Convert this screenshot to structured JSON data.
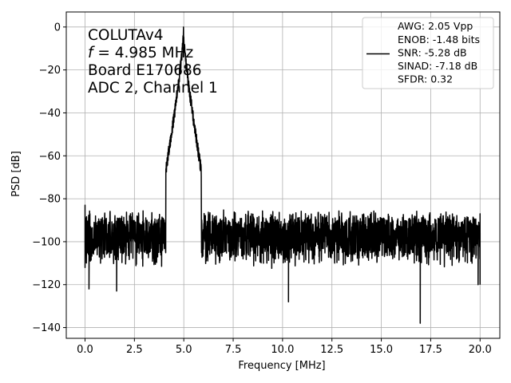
{
  "chart_data": {
    "type": "line",
    "xlabel": "Frequency [MHz]",
    "ylabel": "PSD [dB]",
    "xlim": [
      -0.95,
      21.0
    ],
    "ylim": [
      -145,
      7
    ],
    "xticks": [
      0.0,
      2.5,
      5.0,
      7.5,
      10.0,
      12.5,
      15.0,
      17.5,
      20.0
    ],
    "xtick_labels": [
      "0.0",
      "2.5",
      "5.0",
      "7.5",
      "10.0",
      "12.5",
      "15.0",
      "17.5",
      "20.0"
    ],
    "yticks": [
      0,
      -20,
      -40,
      -60,
      -80,
      -100,
      -120,
      -140
    ],
    "ytick_labels": [
      "0",
      "−20",
      "−40",
      "−60",
      "−80",
      "−100",
      "−120",
      "−140"
    ],
    "grid": true,
    "legend_position": "upper-right",
    "annotation": {
      "line1": "COLUTAv4",
      "line2_var": "f",
      "line2_rest": " = 4.985 MHz",
      "line3": "Board E170686",
      "line4": "ADC 2, Channel 1"
    },
    "legend": {
      "color": "#000000",
      "lines": [
        "AWG: 2.05 Vpp",
        "ENOB: -1.48 bits",
        "SNR: -5.28 dB",
        "SINAD: -7.18 dB",
        "SFDR: 0.32"
      ]
    },
    "series": [
      {
        "color": "#000000",
        "signal": {
          "peak_freq": 4.985,
          "peak_db": 0
        },
        "noise_floor": {
          "x_range": [
            0.0,
            20.0
          ],
          "median_db": -97,
          "upper_db": -87,
          "lower_db": -110
        },
        "endpoints": [
          {
            "x": 0.0,
            "y_high": -83,
            "y_low": -112
          },
          {
            "x": 20.0,
            "y_high": -87,
            "y_low": -120
          }
        ],
        "notable_dips": [
          {
            "x": 0.2,
            "y": -122
          },
          {
            "x": 1.6,
            "y": -123
          },
          {
            "x": 10.3,
            "y": -128
          },
          {
            "x": 16.97,
            "y": -138
          },
          {
            "x": 19.9,
            "y": -120
          }
        ]
      }
    ]
  }
}
